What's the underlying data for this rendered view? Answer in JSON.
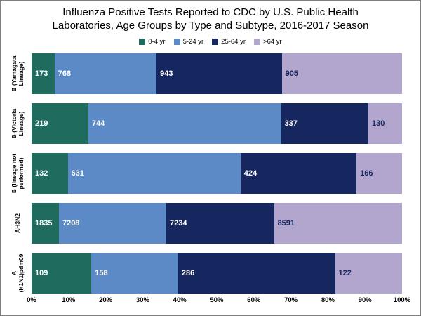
{
  "chart_data": {
    "type": "bar",
    "orientation": "horizontal",
    "stacking": "percent",
    "title": "Influenza Positive Tests Reported to CDC by U.S. Public Health Laboratories, Age Groups by Type and Subtype, 2016-2017 Season",
    "categories": [
      "B (Yamagata Lineage)",
      "B (Victoria Lineage)",
      "B (lineage not performed)",
      "AH3N2",
      "A (H1N1)pdm09"
    ],
    "series": [
      {
        "name": "0-4 yr",
        "color": "#1F6C5F",
        "label_color": "#FFFFFF",
        "values": [
          173,
          219,
          132,
          1835,
          109
        ]
      },
      {
        "name": "5-24 yr",
        "color": "#5B8AC6",
        "label_color": "#FFFFFF",
        "values": [
          768,
          744,
          631,
          7208,
          158
        ]
      },
      {
        "name": "25-64 yr",
        "color": "#16265E",
        "label_color": "#FFFFFF",
        "values": [
          943,
          337,
          424,
          7234,
          286
        ]
      },
      {
        "name": ">64 yr",
        "color": "#B3A6CE",
        "label_color": "#16265E",
        "values": [
          905,
          130,
          166,
          8591,
          122
        ]
      }
    ],
    "x_ticks": [
      "0%",
      "10%",
      "20%",
      "30%",
      "40%",
      "50%",
      "60%",
      "70%",
      "80%",
      "90%",
      "100%"
    ],
    "xlim": [
      0,
      100
    ],
    "grid": false,
    "legend_position": "top"
  }
}
